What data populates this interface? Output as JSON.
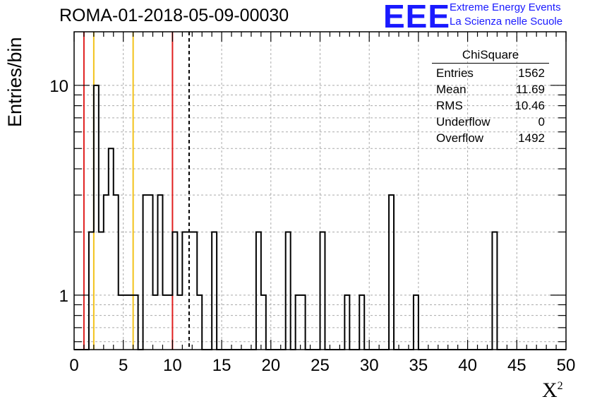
{
  "page_title": "ROMA-01-2018-05-09-00030",
  "logo": {
    "mark": "EEE",
    "line1": "Extreme Energy Events",
    "line2": "La Scienza nelle Scuole",
    "color": "#1a1aff"
  },
  "stats_box": {
    "title": "ChiSquare",
    "rows": [
      {
        "label": "Entries",
        "value": "1562"
      },
      {
        "label": "Mean",
        "value": "11.69"
      },
      {
        "label": "RMS",
        "value": "10.46"
      },
      {
        "label": "Underflow",
        "value": "0"
      },
      {
        "label": "Overflow",
        "value": "1492"
      }
    ]
  },
  "chart_data": {
    "type": "bar",
    "subtype": "histogram-step",
    "title": "ROMA-01-2018-05-09-00030",
    "xlabel": "X²",
    "ylabel": "Entries/bin",
    "xlim": [
      0,
      50
    ],
    "ylim": [
      0.55,
      18
    ],
    "y_scale": "log",
    "grid": true,
    "bin_width": 0.5,
    "x_ticks": [
      0,
      5,
      10,
      15,
      20,
      25,
      30,
      35,
      40,
      45,
      50
    ],
    "y_ticks": [
      1,
      10
    ],
    "bins": [
      {
        "x": 1.5,
        "y": 2
      },
      {
        "x": 2.0,
        "y": 10
      },
      {
        "x": 2.5,
        "y": 2
      },
      {
        "x": 3.0,
        "y": 3
      },
      {
        "x": 3.5,
        "y": 5
      },
      {
        "x": 4.0,
        "y": 3
      },
      {
        "x": 4.5,
        "y": 1
      },
      {
        "x": 5.0,
        "y": 1
      },
      {
        "x": 5.5,
        "y": 1
      },
      {
        "x": 6.0,
        "y": 1
      },
      {
        "x": 7.0,
        "y": 3
      },
      {
        "x": 7.5,
        "y": 3
      },
      {
        "x": 8.0,
        "y": 1
      },
      {
        "x": 8.5,
        "y": 3
      },
      {
        "x": 9.0,
        "y": 1
      },
      {
        "x": 9.5,
        "y": 1
      },
      {
        "x": 10.0,
        "y": 2
      },
      {
        "x": 10.5,
        "y": 1
      },
      {
        "x": 11.0,
        "y": 2
      },
      {
        "x": 11.5,
        "y": 2
      },
      {
        "x": 12.0,
        "y": 2
      },
      {
        "x": 12.5,
        "y": 1
      },
      {
        "x": 14.0,
        "y": 2
      },
      {
        "x": 18.5,
        "y": 2
      },
      {
        "x": 19.0,
        "y": 1
      },
      {
        "x": 21.5,
        "y": 2
      },
      {
        "x": 22.5,
        "y": 1
      },
      {
        "x": 23.0,
        "y": 1
      },
      {
        "x": 25.0,
        "y": 2
      },
      {
        "x": 27.5,
        "y": 1
      },
      {
        "x": 29.0,
        "y": 1
      },
      {
        "x": 32.0,
        "y": 3
      },
      {
        "x": 34.5,
        "y": 1
      },
      {
        "x": 42.5,
        "y": 2
      }
    ],
    "vertical_lines": [
      {
        "x": 1.0,
        "color": "#e02020",
        "style": "solid"
      },
      {
        "x": 2.0,
        "color": "#f2c21b",
        "style": "solid"
      },
      {
        "x": 6.0,
        "color": "#f2c21b",
        "style": "solid"
      },
      {
        "x": 10.0,
        "color": "#e02020",
        "style": "solid"
      },
      {
        "x": 11.69,
        "color": "#000000",
        "style": "dashed"
      }
    ]
  }
}
